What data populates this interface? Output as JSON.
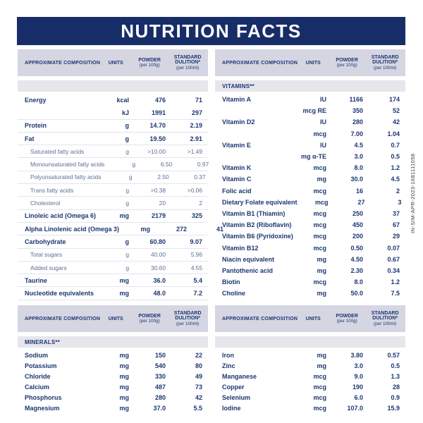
{
  "title": "NUTRITION FACTS",
  "side_code": "IN-SIM-APR-2023-1681111058",
  "colors": {
    "title_band": "#172d68",
    "header_band": "#d5d6e2",
    "section_band": "#e6e6ec",
    "text_navy": "#1c3672",
    "sub_text": "#5e6d96"
  },
  "column_headers": {
    "composition": "APPROXIMATE COMPOSITION",
    "units": "UNITS",
    "powder": "POWDER",
    "powder_sub": "(per 100g)",
    "standard_1": "STANDARD",
    "standard_2": "DULITION*",
    "standard_sub": "(per 100ml)"
  },
  "tables": [
    {
      "id": "composition",
      "section": "",
      "rows": [
        {
          "name": "Energy",
          "units": "kcal",
          "powder": "476",
          "standard": "71",
          "style": "main"
        },
        {
          "name": "",
          "units": "kJ",
          "powder": "1991",
          "standard": "297",
          "style": "main"
        },
        {
          "name": "Protein",
          "units": "g",
          "powder": "14.70",
          "standard": "2.19",
          "style": "main"
        },
        {
          "name": "Fat",
          "units": "g",
          "powder": "19.50",
          "standard": "2.91",
          "style": "main"
        },
        {
          "name": "Saturated fatty acids",
          "units": "g",
          "powder": ">10.00",
          "standard": ">1.49",
          "style": "sub"
        },
        {
          "name": "Monounsaturated fatty acids",
          "units": "g",
          "powder": "6.50",
          "standard": "0.97",
          "style": "sub"
        },
        {
          "name": "Polyunsaturated fatty acids",
          "units": "g",
          "powder": "2.50",
          "standard": "0.37",
          "style": "sub"
        },
        {
          "name": "Trans fatty acids",
          "units": "g",
          "powder": ">0.38",
          "standard": ">0.06",
          "style": "sub"
        },
        {
          "name": "Cholesterol",
          "units": "g",
          "powder": "20",
          "standard": "2",
          "style": "sub"
        },
        {
          "name": "Linoleic acid (Omega 6)",
          "units": "mg",
          "powder": "2179",
          "standard": "325",
          "style": "main"
        },
        {
          "name": "Alpha Linolenic acid (Omega 3)",
          "units": "mg",
          "powder": "272",
          "standard": "41",
          "style": "main"
        },
        {
          "name": "Carbohydrate",
          "units": "g",
          "powder": "60.80",
          "standard": "9.07",
          "style": "main"
        },
        {
          "name": "Total sugars",
          "units": "g",
          "powder": "40.00",
          "standard": "5.96",
          "style": "sub"
        },
        {
          "name": "Added sugars",
          "units": "g",
          "powder": "30.60",
          "standard": "4.55",
          "style": "sub"
        },
        {
          "name": "Taurine",
          "units": "mg",
          "powder": "36.0",
          "standard": "5.4",
          "style": "main"
        },
        {
          "name": "Nucleotide equivalents",
          "units": "mg",
          "powder": "48.0",
          "standard": "7.2",
          "style": "main"
        }
      ]
    },
    {
      "id": "vitamins",
      "section": "VITAMINS**",
      "rows": [
        {
          "name": "Vitamin A",
          "units": "IU",
          "powder": "1166",
          "standard": "174",
          "style": "main"
        },
        {
          "name": "",
          "units": "mcg RE",
          "powder": "350",
          "standard": "52",
          "style": "main"
        },
        {
          "name": "Vitamin D2",
          "units": "IU",
          "powder": "280",
          "standard": "42",
          "style": "main"
        },
        {
          "name": "",
          "units": "mcg",
          "powder": "7.00",
          "standard": "1.04",
          "style": "main"
        },
        {
          "name": "Vitamin E",
          "units": "IU",
          "powder": "4.5",
          "standard": "0.7",
          "style": "main"
        },
        {
          "name": "",
          "units": "mg α-TE",
          "powder": "3.0",
          "standard": "0.5",
          "style": "main"
        },
        {
          "name": "Vitamin K",
          "units": "mcg",
          "powder": "8.0",
          "standard": "1.2",
          "style": "main"
        },
        {
          "name": "Vitamin C",
          "units": "mg",
          "powder": "30.0",
          "standard": "4.5",
          "style": "main"
        },
        {
          "name": "Folic acid",
          "units": "mcg",
          "powder": "16",
          "standard": "2",
          "style": "main"
        },
        {
          "name": "Dietary Folate equivalent",
          "units": "mcg",
          "powder": "27",
          "standard": "3",
          "style": "main"
        },
        {
          "name": "Vitamin B1 (Thiamin)",
          "units": "mcg",
          "powder": "250",
          "standard": "37",
          "style": "main"
        },
        {
          "name": "Vitamin B2 (Riboflavin)",
          "units": "mcg",
          "powder": "450",
          "standard": "67",
          "style": "main"
        },
        {
          "name": "Vitamin B6 (Pyridoxine)",
          "units": "mcg",
          "powder": "200",
          "standard": "29",
          "style": "main"
        },
        {
          "name": "Vitamin B12",
          "units": "mcg",
          "powder": "0.50",
          "standard": "0.07",
          "style": "main"
        },
        {
          "name": "Niacin equivalent",
          "units": "mg",
          "powder": "4.50",
          "standard": "0.67",
          "style": "main"
        },
        {
          "name": "Pantothenic acid",
          "units": "mg",
          "powder": "2.30",
          "standard": "0.34",
          "style": "main"
        },
        {
          "name": "Biotin",
          "units": "mcg",
          "powder": "8.0",
          "standard": "1.2",
          "style": "main"
        },
        {
          "name": "Choline",
          "units": "mg",
          "powder": "50.0",
          "standard": "7.5",
          "style": "main"
        }
      ]
    },
    {
      "id": "minerals",
      "section": "MINERALS**",
      "rows": [
        {
          "name": "Sodium",
          "units": "mg",
          "powder": "150",
          "standard": "22",
          "style": "main"
        },
        {
          "name": "Potassium",
          "units": "mg",
          "powder": "540",
          "standard": "80",
          "style": "main"
        },
        {
          "name": "Chloride",
          "units": "mg",
          "powder": "330",
          "standard": "49",
          "style": "main"
        },
        {
          "name": "Calcium",
          "units": "mg",
          "powder": "487",
          "standard": "73",
          "style": "main"
        },
        {
          "name": "Phosphorus",
          "units": "mg",
          "powder": "280",
          "standard": "42",
          "style": "main"
        },
        {
          "name": "Magnesium",
          "units": "mg",
          "powder": "37.0",
          "standard": "5.5",
          "style": "main"
        }
      ]
    },
    {
      "id": "minerals2",
      "section": "",
      "rows": [
        {
          "name": "Iron",
          "units": "mg",
          "powder": "3.80",
          "standard": "0.57",
          "style": "main"
        },
        {
          "name": "Zinc",
          "units": "mg",
          "powder": "3.0",
          "standard": "0.5",
          "style": "main"
        },
        {
          "name": "Manganese",
          "units": "mcg",
          "powder": "9.0",
          "standard": "1.3",
          "style": "main"
        },
        {
          "name": "Copper",
          "units": "mcg",
          "powder": "190",
          "standard": "28",
          "style": "main"
        },
        {
          "name": "Selenium",
          "units": "mcg",
          "powder": "6.0",
          "standard": "0.9",
          "style": "main"
        },
        {
          "name": "Iodine",
          "units": "mcg",
          "powder": "107.0",
          "standard": "15.9",
          "style": "main"
        }
      ]
    }
  ]
}
